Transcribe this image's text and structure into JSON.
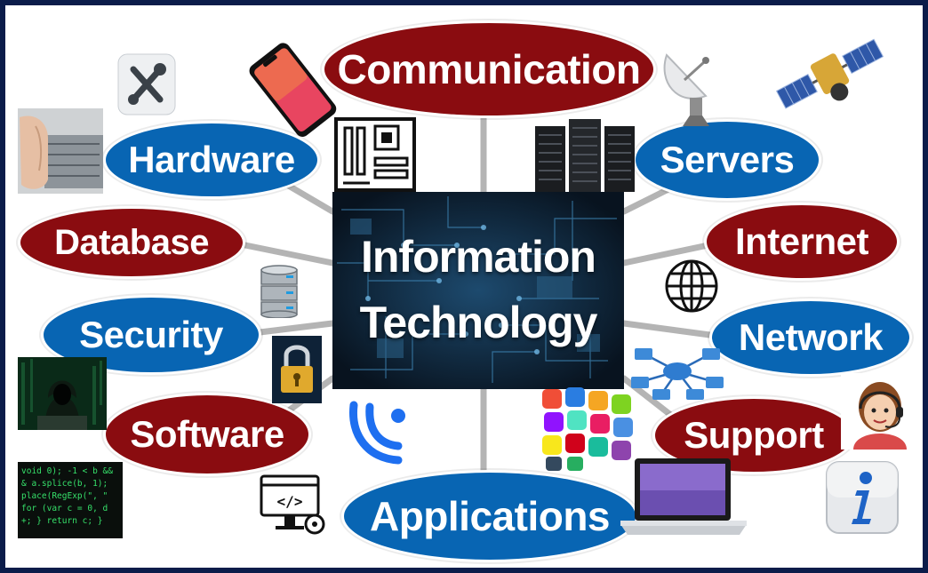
{
  "center": {
    "line1": "Information",
    "line2": "Technology"
  },
  "nodes": {
    "communication": "Communication",
    "hardware": "Hardware",
    "servers": "Servers",
    "database": "Database",
    "internet": "Internet",
    "security": "Security",
    "network": "Network",
    "software": "Software",
    "support": "Support",
    "applications": "Applications"
  },
  "code_snippet": "void 0); -1 < b &&\n& a.splice(b, 1);\nplace(RegExp(\", \"\nfor (var c = 0, d\n+; } return c; }",
  "colors": {
    "red": "#8a0c10",
    "blue": "#0865b3",
    "frame": "#0b1c4a",
    "spoke": "#b4b4b4"
  },
  "icons": [
    "tools-icon",
    "hand-hardware-photo",
    "smartphone-icon",
    "motherboard-icon",
    "satellite-dish-icon",
    "satellite-icon",
    "server-rack-icon",
    "database-icon",
    "globe-icon",
    "padlock-icon",
    "hacker-photo",
    "network-hub-icon",
    "headset-agent-icon",
    "brand-logo-icon",
    "app-icons-cluster",
    "laptop-icon",
    "code-monitor-icon",
    "info-icon"
  ]
}
